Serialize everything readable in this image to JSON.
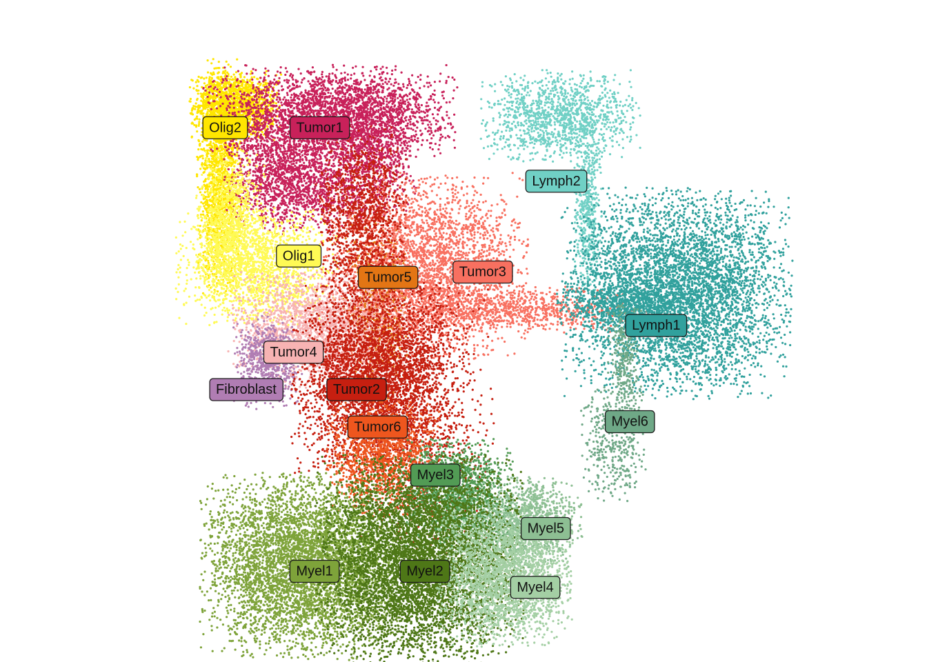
{
  "chart_data": {
    "type": "scatter",
    "title": "",
    "xlabel": "",
    "ylabel": "",
    "axes": "none",
    "grid": false,
    "legend": "none",
    "xlim": [
      0,
      100
    ],
    "ylim": [
      0,
      100
    ],
    "clusters": [
      {
        "name": "Olig2",
        "color": "#FFE600",
        "center": [
          6,
          93
        ],
        "label_at": [
          4,
          89
        ],
        "blobs": [
          [
            6,
            93,
            4,
            3,
            1500
          ],
          [
            3,
            80,
            2,
            10,
            1500
          ]
        ]
      },
      {
        "name": "Tumor1",
        "color": "#C8215A",
        "center": [
          24,
          88
        ],
        "label_at": [
          22,
          89
        ],
        "blobs": [
          [
            24,
            92,
            11,
            4,
            2500
          ],
          [
            17,
            80,
            6,
            5,
            1800
          ],
          [
            32,
            84,
            4,
            6,
            1000
          ]
        ]
      },
      {
        "name": "Lymph2",
        "color": "#70D0C5",
        "center": [
          68,
          90
        ],
        "label_at": [
          67,
          79
        ],
        "blobs": [
          [
            68,
            91,
            7,
            4,
            1300
          ],
          [
            73,
            74,
            1.2,
            8,
            500
          ]
        ]
      },
      {
        "name": "Olig1",
        "color": "#FFFA55",
        "center": [
          10,
          65
        ],
        "label_at": [
          18,
          65
        ],
        "blobs": [
          [
            10,
            63,
            7,
            5,
            1800
          ],
          [
            5,
            72,
            3,
            6,
            800
          ]
        ]
      },
      {
        "name": "Tumor5",
        "color": "#E37514",
        "center": [
          33,
          56
        ],
        "label_at": [
          35,
          61
        ],
        "blobs": [
          [
            33,
            55,
            3,
            8,
            1000
          ]
        ]
      },
      {
        "name": "Tumor3",
        "color": "#F87060",
        "center": [
          42,
          63
        ],
        "label_at": [
          53,
          62
        ],
        "blobs": [
          [
            42,
            63,
            9,
            8,
            3000
          ],
          [
            58,
            55,
            12,
            2,
            900
          ]
        ]
      },
      {
        "name": "Lymph1",
        "color": "#31A19D",
        "center": [
          88,
          58
        ],
        "label_at": [
          86,
          52
        ],
        "blobs": [
          [
            90,
            58,
            10,
            9,
            5000
          ],
          [
            80,
            56,
            6,
            2,
            600
          ]
        ]
      },
      {
        "name": "Tumor4",
        "color": "#F7B3B3",
        "center": [
          22,
          50
        ],
        "label_at": [
          17,
          47
        ],
        "blobs": [
          [
            22,
            51,
            8,
            5,
            2000
          ]
        ]
      },
      {
        "name": "Fibroblast",
        "color": "#B07DB3",
        "center": [
          12,
          45
        ],
        "label_at": [
          8,
          40
        ],
        "blobs": [
          [
            12,
            45,
            3,
            4,
            700
          ]
        ]
      },
      {
        "name": "Tumor2",
        "color": "#C61F10",
        "center": [
          32,
          42
        ],
        "label_at": [
          29,
          40
        ],
        "blobs": [
          [
            32,
            42,
            7,
            8,
            3500
          ],
          [
            30,
            72,
            4,
            8,
            1200
          ],
          [
            42,
            35,
            6,
            12,
            1000
          ]
        ]
      },
      {
        "name": "Tumor6",
        "color": "#EE561E",
        "center": [
          34,
          28
        ],
        "label_at": [
          33,
          33
        ],
        "blobs": [
          [
            34,
            27,
            5,
            5,
            1300
          ]
        ]
      },
      {
        "name": "Myel6",
        "color": "#6FA887",
        "center": [
          75,
          32
        ],
        "label_at": [
          81,
          34
        ],
        "blobs": [
          [
            78,
            30,
            3,
            5,
            400
          ],
          [
            80,
            45,
            1.5,
            5,
            300
          ]
        ]
      },
      {
        "name": "Myel3",
        "color": "#529B55",
        "center": [
          47,
          22
        ],
        "label_at": [
          44,
          24
        ],
        "blobs": [
          [
            48,
            20,
            5,
            5,
            1500
          ]
        ]
      },
      {
        "name": "Myel5",
        "color": "#8DBF93",
        "center": [
          61,
          15
        ],
        "label_at": [
          65,
          14
        ],
        "blobs": [
          [
            61,
            15,
            5,
            4,
            1200
          ]
        ]
      },
      {
        "name": "Myel1",
        "color": "#7EA33A",
        "center": [
          20,
          8
        ],
        "label_at": [
          21,
          6
        ],
        "blobs": [
          [
            19,
            7,
            9,
            8,
            5000
          ]
        ]
      },
      {
        "name": "Myel2",
        "color": "#4E7717",
        "center": [
          42,
          8
        ],
        "label_at": [
          42,
          6
        ],
        "blobs": [
          [
            41,
            8,
            9,
            9,
            6000
          ]
        ]
      },
      {
        "name": "Myel4",
        "color": "#A4CFA4",
        "center": [
          57,
          5
        ],
        "label_at": [
          63,
          3
        ],
        "blobs": [
          [
            57,
            5,
            6,
            6,
            2500
          ]
        ]
      }
    ]
  }
}
